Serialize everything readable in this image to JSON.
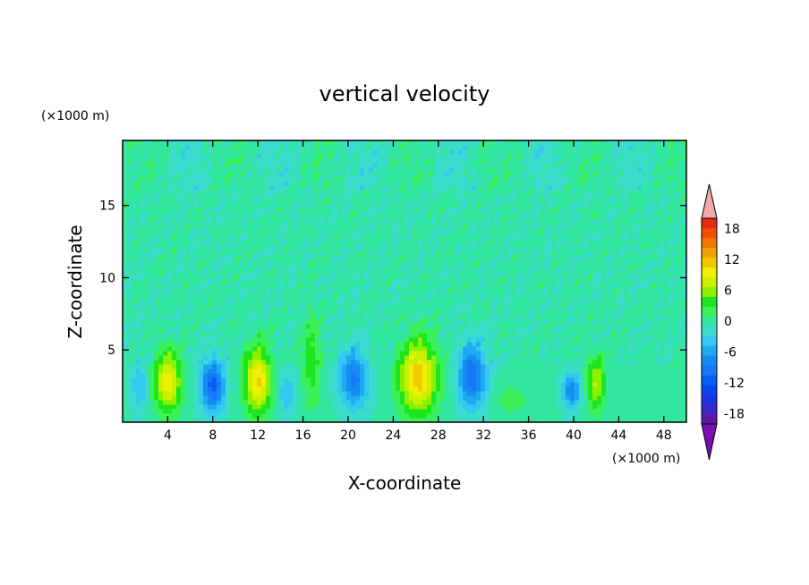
{
  "chart_data": {
    "type": "heatmap",
    "title": "vertical velocity",
    "xlabel": "X-coordinate",
    "ylabel": "Z-coordinate",
    "x_unit": "(×1000 m)",
    "y_unit": "(×1000 m)",
    "xlim": [
      0,
      50
    ],
    "ylim": [
      0,
      19.5
    ],
    "xticks": [
      4,
      8,
      12,
      16,
      20,
      24,
      28,
      32,
      36,
      40,
      44,
      48
    ],
    "yticks": [
      5,
      10,
      15
    ],
    "grid": false,
    "colorbar": {
      "placement": "right",
      "levels": [
        -20,
        -18,
        -16,
        -14,
        -12,
        -10,
        -8,
        -6,
        -4,
        -2,
        0,
        2,
        4,
        6,
        8,
        10,
        12,
        14,
        16,
        18,
        20
      ],
      "colors": [
        "#5a1aa8",
        "#3c28c8",
        "#1e32e6",
        "#0a46f0",
        "#0a5ef8",
        "#1478f8",
        "#148cf0",
        "#1eaaf0",
        "#32c8f0",
        "#3cdccc",
        "#32e6a0",
        "#3cf05a",
        "#1ee61e",
        "#8cf000",
        "#c8f000",
        "#f0f000",
        "#f0c800",
        "#f0a000",
        "#f07800",
        "#f05000",
        "#e62814"
      ],
      "under_color": "#7a10b0",
      "over_color": "#f4a8a8",
      "tick_labels": [
        "18",
        "12",
        "6",
        "0",
        "-6",
        "-12",
        "-18"
      ],
      "tick_values": [
        18,
        12,
        6,
        0,
        -6,
        -12,
        -18
      ]
    },
    "features": [
      {
        "x": 4.0,
        "z": 2.8,
        "w": 2.6,
        "h": 4.6,
        "peak": 11
      },
      {
        "x": 12.0,
        "z": 2.9,
        "w": 2.6,
        "h": 5.0,
        "peak": 12
      },
      {
        "x": 26.2,
        "z": 3.1,
        "w": 3.6,
        "h": 5.5,
        "peak": 13
      },
      {
        "x": 42.0,
        "z": 2.7,
        "w": 1.8,
        "h": 4.2,
        "peak": 8
      },
      {
        "x": 16.8,
        "z": 4.2,
        "w": 1.8,
        "h": 7.0,
        "peak": 5
      },
      {
        "x": 34.5,
        "z": 1.6,
        "w": 3.0,
        "h": 2.4,
        "peak": 3
      },
      {
        "x": 8.0,
        "z": 2.6,
        "w": 2.2,
        "h": 3.8,
        "peak": -11
      },
      {
        "x": 20.5,
        "z": 3.0,
        "w": 2.6,
        "h": 4.2,
        "peak": -9
      },
      {
        "x": 31.0,
        "z": 3.2,
        "w": 2.6,
        "h": 4.6,
        "peak": -10
      },
      {
        "x": 39.8,
        "z": 2.2,
        "w": 1.6,
        "h": 2.6,
        "peak": -8
      },
      {
        "x": 14.5,
        "z": 2.0,
        "w": 1.8,
        "h": 3.0,
        "peak": -4
      },
      {
        "x": 1.5,
        "z": 2.5,
        "w": 1.6,
        "h": 3.5,
        "peak": -4
      }
    ]
  }
}
